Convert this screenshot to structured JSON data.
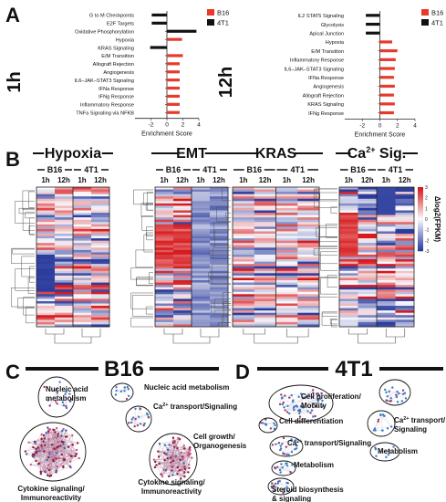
{
  "panels": {
    "A": {
      "letter": "A",
      "charts": [
        {
          "time_label": "1h",
          "xlabel": "Enrichment Score",
          "ticks": [
            "-2",
            "0",
            "2",
            "4"
          ],
          "legend": [
            {
              "name": "B16",
              "color": "#e8392b"
            },
            {
              "name": "4T1",
              "color": "#111111"
            }
          ],
          "bars": [
            {
              "label": "G to M Checkpoints",
              "value": -1.9,
              "series": "4T1"
            },
            {
              "label": "E2F Targets",
              "value": -1.9,
              "series": "4T1"
            },
            {
              "label": "Oxidative Phosphorylation",
              "value": 3.7,
              "series": "4T1"
            },
            {
              "label": "Hypoxia",
              "value": 1.9,
              "series": "B16"
            },
            {
              "label": "KRAS Signaling",
              "value": -2.1,
              "series": "4T1"
            },
            {
              "label": "E/M Transition",
              "value": 2.0,
              "series": "B16"
            },
            {
              "label": "Allograft Rejection",
              "value": 1.6,
              "series": "B16"
            },
            {
              "label": "Angiogenesis",
              "value": 1.6,
              "series": "B16"
            },
            {
              "label": "IL6–JAK–STAT3 Signaling",
              "value": 1.6,
              "series": "B16"
            },
            {
              "label": "IFNa Response",
              "value": 1.6,
              "series": "B16"
            },
            {
              "label": "IFNg Response",
              "value": 1.6,
              "series": "B16"
            },
            {
              "label": "Inflammatory Response",
              "value": 1.6,
              "series": "B16"
            },
            {
              "label": "TNFa Signaling via NFKB",
              "value": 1.6,
              "series": "B16"
            }
          ]
        },
        {
          "time_label": "12h",
          "xlabel": "Enrichment Score",
          "ticks": [
            "-2",
            "0",
            "2",
            "4"
          ],
          "legend": [
            {
              "name": "B16",
              "color": "#e8392b"
            },
            {
              "name": "4T1",
              "color": "#111111"
            }
          ],
          "bars": [
            {
              "label": "IL2 STAT5 Signaling",
              "value": -1.6,
              "series": "4T1"
            },
            {
              "label": "Glycolysis",
              "value": -1.6,
              "series": "4T1"
            },
            {
              "label": "Apical Junction",
              "value": -1.6,
              "series": "4T1"
            },
            {
              "label": "Hypoxia",
              "value": 1.4,
              "series": "B16"
            },
            {
              "label": "E/M Transition",
              "value": 2.0,
              "series": "B16"
            },
            {
              "label": "Inflammatory Response",
              "value": 1.8,
              "series": "B16"
            },
            {
              "label": "IL6–JAK–STAT3 Signaling",
              "value": 1.7,
              "series": "B16"
            },
            {
              "label": "IFNa Response",
              "value": 1.6,
              "series": "B16"
            },
            {
              "label": "Angiogenesis",
              "value": 1.7,
              "series": "B16"
            },
            {
              "label": "Allograft Rejection",
              "value": 1.6,
              "series": "B16"
            },
            {
              "label": "KRAS Signaling",
              "value": 1.7,
              "series": "B16"
            },
            {
              "label": "IFNg Response",
              "value": 1.6,
              "series": "B16"
            }
          ]
        }
      ]
    },
    "B": {
      "letter": "B",
      "heatmaps": [
        {
          "title": "Hypoxia",
          "groups": [
            "B16",
            "4T1"
          ],
          "cols": [
            "1h",
            "12h",
            "1h",
            "12h"
          ]
        },
        {
          "title": "EMT",
          "groups": [
            "B16",
            "4T1"
          ],
          "cols": [
            "1h",
            "12h",
            "1h",
            "12h"
          ]
        },
        {
          "title": "KRAS",
          "groups": [
            "B16",
            "4T1"
          ],
          "cols": [
            "1h",
            "12h",
            "1h",
            "12h"
          ]
        },
        {
          "title": "Ca",
          "title_sup": "2+",
          "title_suffix": " Sig.",
          "groups": [
            "B16",
            "4T1"
          ],
          "cols": [
            "1h",
            "12h",
            "1h",
            "12h"
          ]
        }
      ],
      "colorbar": {
        "label": "Δlog2(FPKM)",
        "ticks": [
          "3",
          "2",
          "1",
          "0",
          "-1",
          "-2",
          "-3"
        ]
      }
    },
    "C": {
      "letter": "C",
      "title": "B16",
      "labels": [
        {
          "text": "Nucleic acid\nmetabolism"
        },
        {
          "text": "Nucleic acid metabolism"
        },
        {
          "text": "Ca2+ transport/Signaling"
        },
        {
          "text": "Cell growth/\nOrganogenesis"
        },
        {
          "text": "Cytokine signaling/\nImmunoreactivity"
        },
        {
          "text": "Cytokine signaling/\nImmunoreactivity"
        }
      ]
    },
    "D": {
      "letter": "D",
      "title": "4T1",
      "labels": [
        {
          "text": "Cell proliferation/\nMotility"
        },
        {
          "text": "Cell differentiation"
        },
        {
          "text": "Ca2+ transport/Signaling"
        },
        {
          "text": "Metabolism"
        },
        {
          "text": "Steroid biosynthesis\n& signaling"
        },
        {
          "text": "Ca2+ transport/\nSignaling"
        },
        {
          "text": "Metabolism"
        }
      ]
    }
  },
  "colors": {
    "b16": "#e8392b",
    "t41": "#111111",
    "hm_red": "#d7191c",
    "hm_blue": "#2c3d9e"
  }
}
